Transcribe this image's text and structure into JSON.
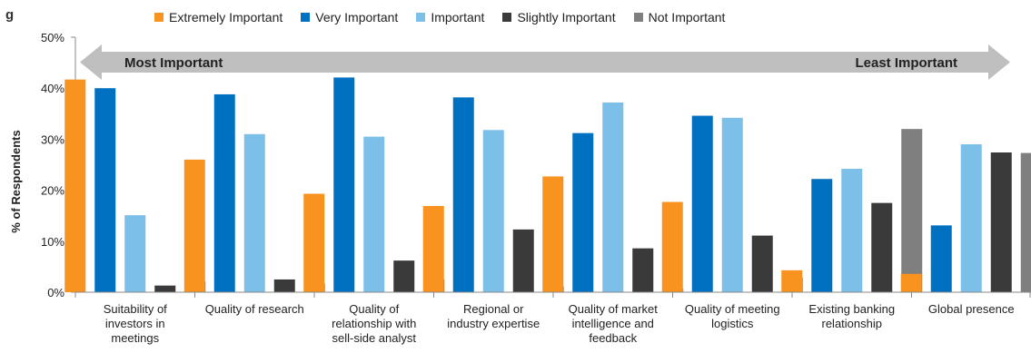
{
  "chart_data": {
    "type": "bar",
    "title": "",
    "xlabel": "",
    "ylabel": "% of Respondents",
    "ylim": [
      0,
      50
    ],
    "yticks": [
      "0%",
      "10%",
      "20%",
      "30%",
      "40%",
      "50%"
    ],
    "grid": false,
    "legend_position": "top",
    "categories": [
      [
        "Suitability of",
        "investors in",
        "meetings"
      ],
      [
        "Quality of research"
      ],
      [
        "Quality of",
        "relationship with",
        "sell-side analyst"
      ],
      [
        "Regional or",
        "industry expertise"
      ],
      [
        "Quality of market",
        "intelligence and",
        "feedback"
      ],
      [
        "Quality of meeting",
        "logistics"
      ],
      [
        "Existing banking",
        "relationship"
      ],
      [
        "Global presence"
      ]
    ],
    "series": [
      {
        "name": "Extremely Important",
        "color": "#F7931E",
        "values": [
          41.7,
          26.0,
          19.3,
          16.9,
          22.7,
          17.7,
          4.3,
          3.6
        ]
      },
      {
        "name": "Very Important",
        "color": "#0070C0",
        "values": [
          40.0,
          38.8,
          42.1,
          38.2,
          31.2,
          34.6,
          22.2,
          13.1
        ]
      },
      {
        "name": "Important",
        "color": "#7CC0EA",
        "values": [
          15.1,
          31.0,
          30.5,
          31.8,
          37.2,
          34.2,
          24.2,
          29.0
        ]
      },
      {
        "name": "Slightly Important",
        "color": "#3A3A3A",
        "values": [
          1.3,
          2.5,
          6.2,
          12.3,
          8.6,
          11.1,
          17.5,
          27.4
        ]
      },
      {
        "name": "Not Important",
        "color": "#7F7F7F",
        "values": [
          2.1,
          1.7,
          2.5,
          1.1,
          0.7,
          2.9,
          32.0,
          27.3
        ]
      }
    ],
    "annotation": {
      "left_label": "Most Important",
      "right_label": "Least Important",
      "arrow_color": "#BFBFBF"
    }
  }
}
